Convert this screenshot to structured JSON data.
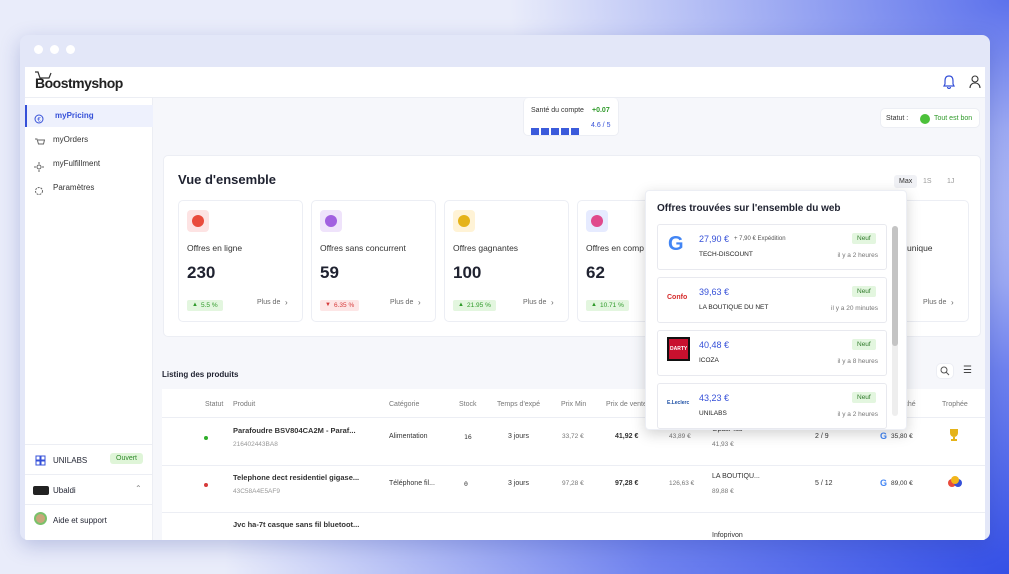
{
  "header": {
    "logo": "Boostmyshop"
  },
  "sidebar": {
    "nav": [
      "myPricing",
      "myOrders",
      "myFulfillment",
      "Paramètres"
    ],
    "shop": {
      "name": "UNILABS",
      "status": "Ouvert"
    },
    "account": "Ubaldi",
    "help": "Aide et support"
  },
  "health": {
    "label": "Santé du compte",
    "delta": "+0.07",
    "score": "4.6 / 5"
  },
  "status": {
    "label": "Statut :",
    "value": "Tout est bon"
  },
  "overview": {
    "title": "Vue d'ensemble",
    "periods": [
      "Max",
      "1S",
      "1J"
    ],
    "cards": [
      {
        "label": "Offres en ligne",
        "value": 230,
        "change": "5.5 %",
        "trend": "up",
        "link": "Plus de"
      },
      {
        "label": "Offres sans concurrent",
        "value": 59,
        "change": "6.35 %",
        "trend": "down",
        "link": "Plus de"
      },
      {
        "label": "Offres gagnantes",
        "value": 100,
        "change": "21.95 %",
        "trend": "up",
        "link": "Plus de"
      },
      {
        "label": "Offres en comp",
        "value": 62,
        "change": "10.71 %",
        "trend": "up",
        "link": "Plus de"
      }
    ],
    "last_card": {
      "label": "unique",
      "link": "Plus de"
    }
  },
  "offers": {
    "title": "Offres trouvées sur l'ensemble du web",
    "items": [
      {
        "logo": "G",
        "price": "27,90 €",
        "shipping": "+ 7,90 € Expédition",
        "seller": "TECH-DISCOUNT",
        "condition": "Neuf",
        "time": "il y a 2 heures"
      },
      {
        "logo": "Confo",
        "price": "39,63 €",
        "seller": "LA BOUTIQUE DU NET",
        "condition": "Neuf",
        "time": "il y a 20 minutes"
      },
      {
        "logo": "DARTY",
        "price": "40,48 €",
        "seller": "ICOZA",
        "condition": "Neuf",
        "time": "il y a 8 heures"
      },
      {
        "logo": "E.Leclerc",
        "price": "43,23 €",
        "seller": "UNILABS",
        "condition": "Neuf",
        "time": "il y a 2 heures"
      }
    ]
  },
  "listing": {
    "title": "Listing des produits",
    "columns": [
      "Statut",
      "Produit",
      "Catégorie",
      "Stock",
      "Temps d'expé",
      "Prix Min",
      "Prix de vente",
      "rché",
      "Trophée"
    ],
    "rows": [
      {
        "product": "Parafoudre BSV804CA2M - Paraf...",
        "sku": "216402443BA8",
        "category": "Alimentation",
        "stock": 16,
        "delay": "3 jours",
        "min": "33,72 €",
        "price": "41,92 €",
        "max": "43,89 €",
        "leader": "GpasPlus",
        "leader_price": "41,93 €",
        "rank": "2 / 9",
        "market": "35,80 €",
        "status": "ok"
      },
      {
        "product": "Telephone dect residentiel gigase...",
        "sku": "43C58A4E5AF9",
        "category": "Téléphone fil...",
        "stock": 0,
        "delay": "3 jours",
        "min": "97,28 €",
        "price": "97,28 €",
        "max": "126,63 €",
        "leader": "LA BOUTIQU...",
        "leader_price": "89,88 €",
        "rank": "5 / 12",
        "market": "89,00 €",
        "status": "ko"
      },
      {
        "product": "Jvc ha-7t casque sans fil bluetoot...",
        "leader": "Infoprivon"
      }
    ]
  }
}
